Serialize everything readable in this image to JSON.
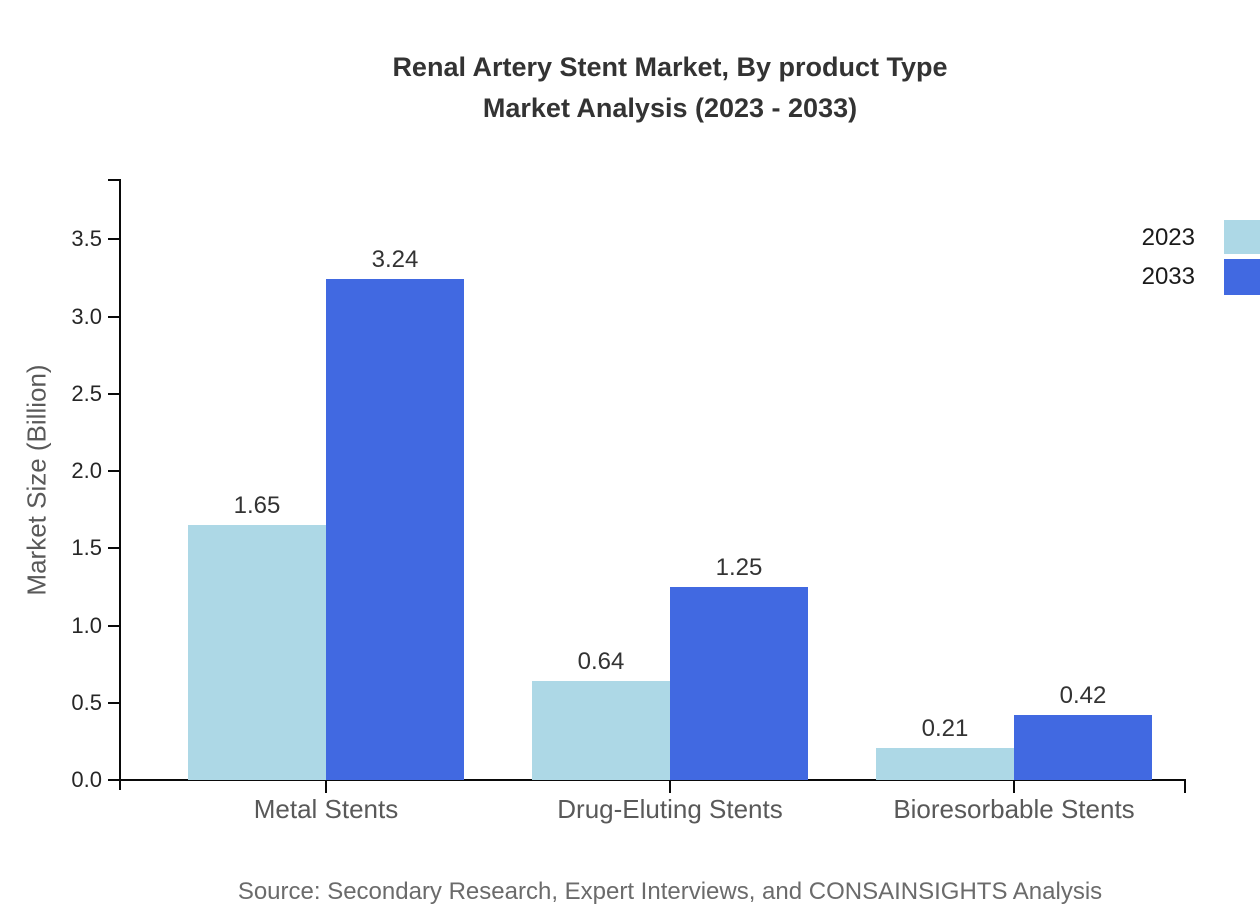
{
  "source": "Source: Secondary Research, Expert Interviews, and CONSAINSIGHTS Analysis",
  "chart_data": {
    "type": "bar",
    "title": "Renal Artery Stent Market, By product Type Market Analysis (2023 - 2033)",
    "title_lines": [
      "Renal Artery Stent Market, By product Type",
      "Market Analysis (2023 - 2033)"
    ],
    "categories": [
      "Metal Stents",
      "Drug-Eluting Stents",
      "Bioresorbable Stents"
    ],
    "series": [
      {
        "name": "2023",
        "color": "#ADD8E6",
        "values": [
          1.65,
          0.64,
          0.21
        ]
      },
      {
        "name": "2033",
        "color": "#4169E1",
        "values": [
          3.24,
          1.25,
          0.42
        ]
      }
    ],
    "ylabel": "Market Size (Billion)",
    "xlabel": "",
    "ylim": [
      0,
      3.88
    ],
    "yticks": [
      "0.0",
      "0.5",
      "1.0",
      "1.5",
      "2.0",
      "2.5",
      "3.0",
      "3.5"
    ],
    "grid": false,
    "legend_position": "top-right",
    "value_label_format": "2-decimals"
  }
}
